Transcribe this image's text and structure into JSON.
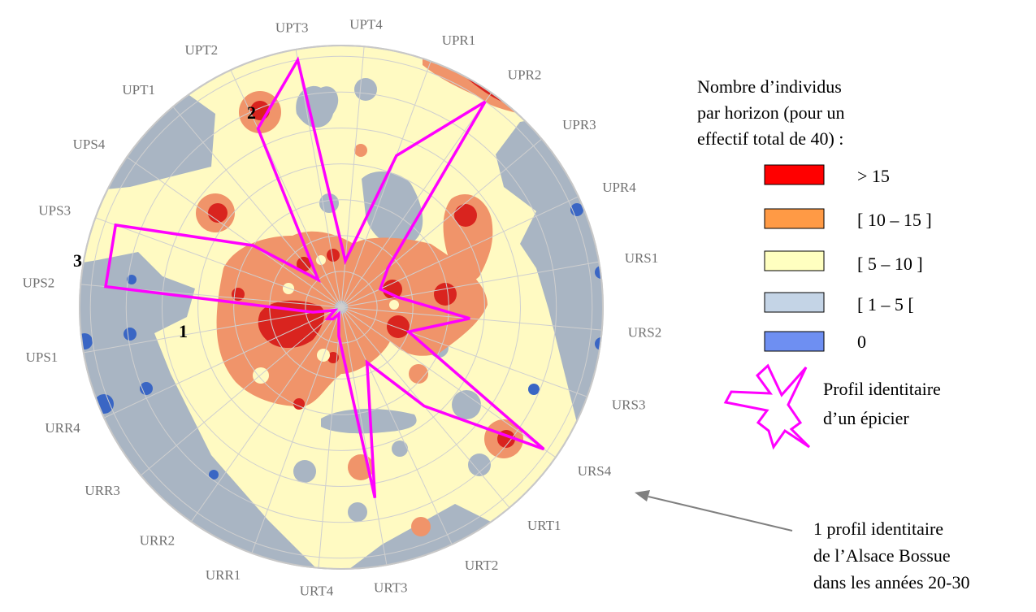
{
  "chart_data": {
    "type": "radar",
    "axes": [
      "UPR1",
      "UPR2",
      "UPR3",
      "UPR4",
      "URS1",
      "URS2",
      "URS3",
      "URS4",
      "URT1",
      "URT2",
      "URT3",
      "URT4",
      "URR1",
      "URR2",
      "URR3",
      "URR4",
      "UPS1",
      "UPS2",
      "UPS3",
      "UPS4",
      "UPT1",
      "UPT2",
      "UPT3",
      "UPT4"
    ],
    "rings": 7,
    "profile": {
      "points": [
        {
          "axis": "UPT3",
          "level": 7.0
        },
        {
          "axis": "UPT4",
          "level": 1.3
        },
        {
          "axis": "UPR1",
          "level": 4.5
        },
        {
          "axis": "UPR2",
          "level": 7.0
        },
        {
          "axis": "UPR3",
          "level": 1.7
        },
        {
          "axis": "UPR4",
          "level": 1.2
        },
        {
          "axis": "URS1",
          "level": 1.6
        },
        {
          "axis": "URS2",
          "level": 3.6
        },
        {
          "axis": "URS3",
          "level": 2.0
        },
        {
          "axis": "URS4",
          "level": 6.9
        },
        {
          "axis": "URT1",
          "level": 3.6
        },
        {
          "axis": "URT2",
          "level": 1.7
        },
        {
          "axis": "URT3",
          "level": 5.4
        },
        {
          "axis": "URT4",
          "level": 0.8
        },
        {
          "axis": "URR1",
          "level": 0.2
        },
        {
          "axis": "URR2",
          "level": 0.4
        },
        {
          "axis": "URR3",
          "level": 0.5
        },
        {
          "axis": "URR4",
          "level": 0.2
        },
        {
          "axis": "UPS1",
          "level": 0.8
        },
        {
          "axis": "UPS2",
          "level": 6.6
        },
        {
          "axis": "UPS3",
          "level": 6.7
        },
        {
          "axis": "UPS4",
          "level": 3.0
        },
        {
          "axis": "UPT1",
          "level": 1.0
        },
        {
          "axis": "UPT2",
          "level": 5.5
        }
      ]
    },
    "markers": [
      {
        "label": "1"
      },
      {
        "label": "2"
      },
      {
        "label": "3"
      }
    ]
  },
  "legend": {
    "title": [
      "Nombre d’individus",
      "par horizon (pour un",
      "effectif total de 40) :"
    ],
    "items": [
      {
        "label": ">  15",
        "color": "#ff0000"
      },
      {
        "label": "[ 10 – 15 ]",
        "color": "#ff9a45"
      },
      {
        "label": "[ 5 – 10 ]",
        "color": "#ffffc0"
      },
      {
        "label": "[ 1 – 5 [",
        "color": "#c4d4e6"
      },
      {
        "label": "0",
        "color": "#6e8ff2"
      }
    ],
    "profile_label": [
      "Profil identitaire",
      "d’un épicier"
    ]
  },
  "annotation": {
    "lines": [
      "1 profil identitaire",
      "de l’Alsace Bossue",
      "dans les années 20-30"
    ]
  },
  "colors": {
    "profile": "#ff00ff",
    "very_high": "#d9241f",
    "high": "#f0946a",
    "mid": "#fffac2",
    "low": "#a9b5c3",
    "zero": "#3a66c4",
    "grid": "#cfcfcf"
  }
}
